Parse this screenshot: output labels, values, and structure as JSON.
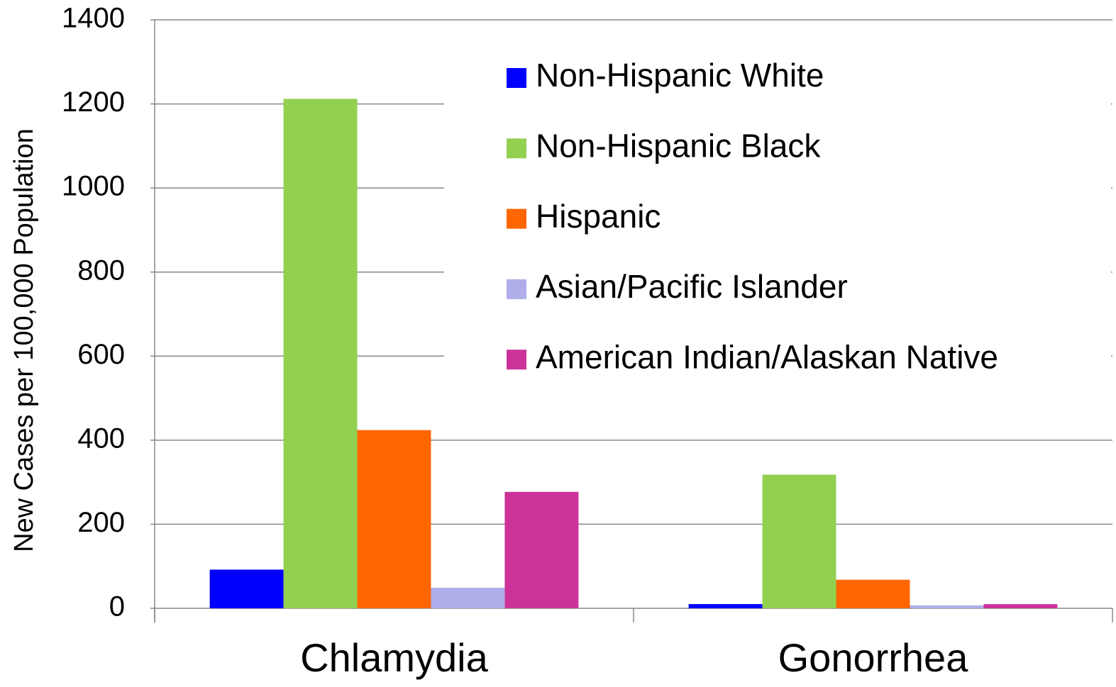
{
  "chart_data": {
    "type": "bar",
    "y_label": "New Cases per 100,000 Population",
    "categories": [
      "Chlamydia",
      "Gonorrhea"
    ],
    "series": [
      {
        "name": "Non-Hispanic White",
        "color": "#0000ff",
        "values": [
          92,
          10
        ]
      },
      {
        "name": "Non-Hispanic Black",
        "color": "#92d050",
        "values": [
          1212,
          318
        ]
      },
      {
        "name": "Hispanic",
        "color": "#ff6600",
        "values": [
          424,
          68
        ]
      },
      {
        "name": "Asian/Pacific Islander",
        "color": "#b0aeea",
        "values": [
          49,
          7
        ]
      },
      {
        "name": "American Indian/Alaskan Native",
        "color": "#cc3399",
        "values": [
          277,
          10
        ]
      }
    ],
    "ylim": [
      0,
      1400
    ],
    "yticks": [
      0,
      200,
      400,
      600,
      800,
      1000,
      1200,
      1400
    ],
    "grid": true,
    "legend": "upper-right"
  }
}
